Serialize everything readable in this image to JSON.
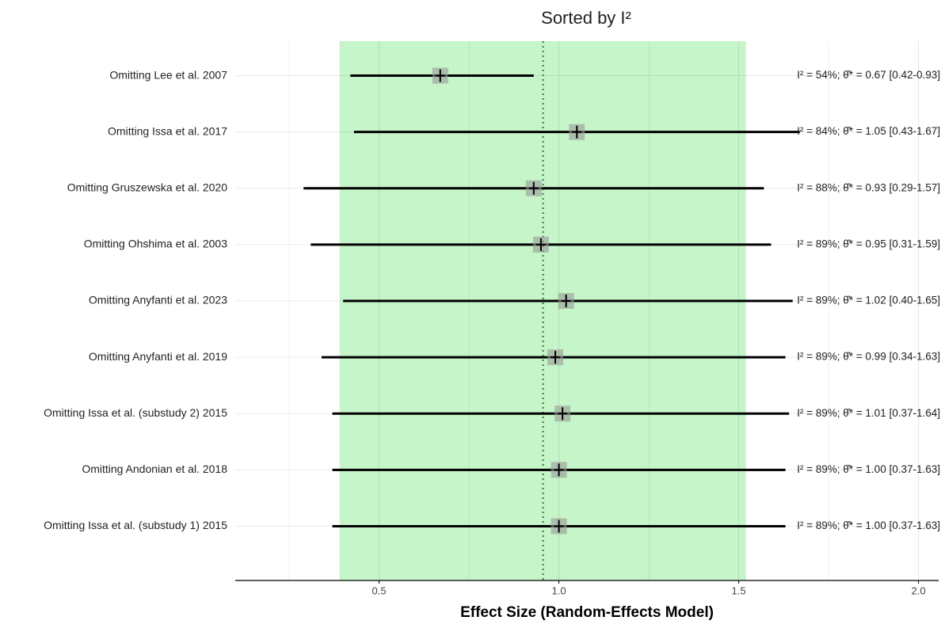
{
  "chart_data": {
    "type": "forest",
    "title": "Sorted by I²",
    "x_label": "Effect Size (Random-Effects Model)",
    "categories": [
      "Omitting Lee et al. 2007",
      "Omitting Issa et al. 2017",
      "Omitting Gruszewska et al. 2020",
      "Omitting Ohshima et al. 2003",
      "Omitting Anyfanti et al. 2023",
      "Omitting Anyfanti et al. 2019",
      "Omitting Issa et al. (substudy 2) 2015",
      "Omitting Andonian et al. 2018",
      "Omitting Issa et al. (substudy 1) 2015"
    ],
    "values": [
      0.67,
      1.05,
      0.93,
      0.95,
      1.02,
      0.99,
      1.01,
      1.0,
      1.0
    ],
    "lower": [
      0.42,
      0.43,
      0.29,
      0.31,
      0.4,
      0.34,
      0.37,
      0.37,
      0.37
    ],
    "upper": [
      0.93,
      1.67,
      1.57,
      1.59,
      1.65,
      1.63,
      1.64,
      1.63,
      1.63
    ],
    "annotations": [
      "I² = 54%; θ̂* = 0.67 [0.42-0.93]",
      "I² = 84%; θ̂* = 1.05 [0.43-1.67]",
      "I² = 88%; θ̂* = 0.93 [0.29-1.57]",
      "I² = 89%; θ̂* = 0.95 [0.31-1.59]",
      "I² = 89%; θ̂* = 1.02 [0.40-1.65]",
      "I² = 89%; θ̂* = 0.99 [0.34-1.63]",
      "I² = 89%; θ̂* = 1.01 [0.37-1.64]",
      "I² = 89%; θ̂* = 1.00 [0.37-1.63]",
      "I² = 89%; θ̂* = 1.00 [0.37-1.63]"
    ],
    "reference_line": 0.956,
    "band": [
      0.39,
      1.52
    ],
    "band_color": "#c5f5c8",
    "xlim": [
      0.1,
      2.056
    ],
    "xticks": [
      0.5,
      {
        "value": 1,
        "label": "1.0"
      },
      1.5,
      {
        "value": 2,
        "label": "2.0"
      }
    ],
    "minor_xticks": [
      0.25,
      0.75,
      1.25,
      1.75
    ],
    "grid": true
  }
}
